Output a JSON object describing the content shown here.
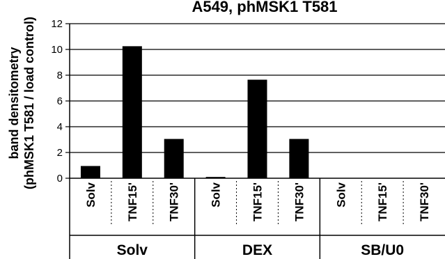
{
  "chart_data": {
    "type": "bar",
    "title": "A549, phMSK1 T581",
    "ylabel_line1": "band densitometry",
    "ylabel_line2": "(phMSK1 T581 / load control)",
    "ylim": [
      0,
      12
    ],
    "yticks": [
      "0",
      "2",
      "4",
      "6",
      "8",
      "10",
      "12"
    ],
    "grid": true,
    "categories": [
      "Solv",
      "TNF15'",
      "TNF30'",
      "Solv",
      "TNF15'",
      "TNF30'",
      "Solv",
      "TNF15'",
      "TNF30'"
    ],
    "groups": [
      "Solv",
      "DEX",
      "SB/U0"
    ],
    "values": [
      0.95,
      10.25,
      3.05,
      0.1,
      7.65,
      3.05,
      0,
      0,
      0
    ],
    "bar_color": "#000000"
  }
}
